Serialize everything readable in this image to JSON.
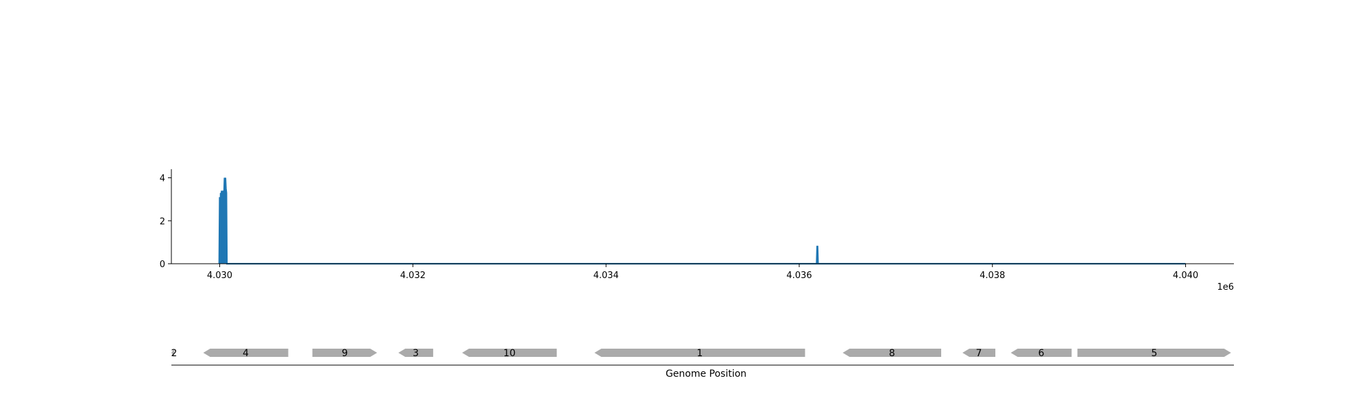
{
  "chart_data": [
    {
      "type": "area",
      "title": "",
      "xlabel": "",
      "ylabel": "",
      "offset_label": "1e6",
      "xlim": [
        4029500,
        4040500
      ],
      "ylim": [
        0,
        4.4
      ],
      "x_ticks": [
        4030000,
        4032000,
        4034000,
        4036000,
        4038000,
        4040000
      ],
      "x_tick_labels": [
        "4.030",
        "4.032",
        "4.034",
        "4.036",
        "4.038",
        "4.040"
      ],
      "y_ticks": [
        0,
        2,
        4
      ],
      "y_tick_labels": [
        "0",
        "2",
        "4"
      ],
      "grid": false,
      "color": "#1f77b4",
      "series": [
        {
          "x": [
            4029995,
            4030000,
            4030005,
            4030010,
            4030015,
            4030020,
            4030025,
            4030030,
            4030035,
            4030040,
            4030045,
            4030050,
            4030055,
            4030060,
            4030065,
            4030070,
            4030075,
            4036180,
            4036185,
            4036190,
            4036195,
            4040000
          ],
          "y": [
            0,
            3.1,
            0.8,
            3.3,
            2.6,
            3.4,
            3.0,
            3.2,
            3.4,
            2.9,
            3.3,
            4.0,
            3.8,
            4.0,
            3.5,
            3.3,
            0,
            0,
            0.8,
            0.8,
            0,
            0
          ]
        }
      ]
    },
    {
      "type": "gene-map",
      "xlabel": "Genome Position",
      "xlim": [
        4029500,
        4040500
      ],
      "color": "#aaaaaa",
      "genes": [
        {
          "label": "2",
          "start": 4029500,
          "end": 4029530,
          "strand": -1
        },
        {
          "label": "4",
          "start": 4029830,
          "end": 4030710,
          "strand": -1
        },
        {
          "label": "9",
          "start": 4030960,
          "end": 4031630,
          "strand": 1
        },
        {
          "label": "3",
          "start": 4031850,
          "end": 4032210,
          "strand": -1
        },
        {
          "label": "10",
          "start": 4032510,
          "end": 4033490,
          "strand": -1
        },
        {
          "label": "1",
          "start": 4033880,
          "end": 4036060,
          "strand": -1
        },
        {
          "label": "8",
          "start": 4036450,
          "end": 4037470,
          "strand": -1
        },
        {
          "label": "7",
          "start": 4037690,
          "end": 4038030,
          "strand": -1
        },
        {
          "label": "6",
          "start": 4038190,
          "end": 4038820,
          "strand": -1
        },
        {
          "label": "5",
          "start": 4038880,
          "end": 4040470,
          "strand": 1
        }
      ]
    }
  ]
}
